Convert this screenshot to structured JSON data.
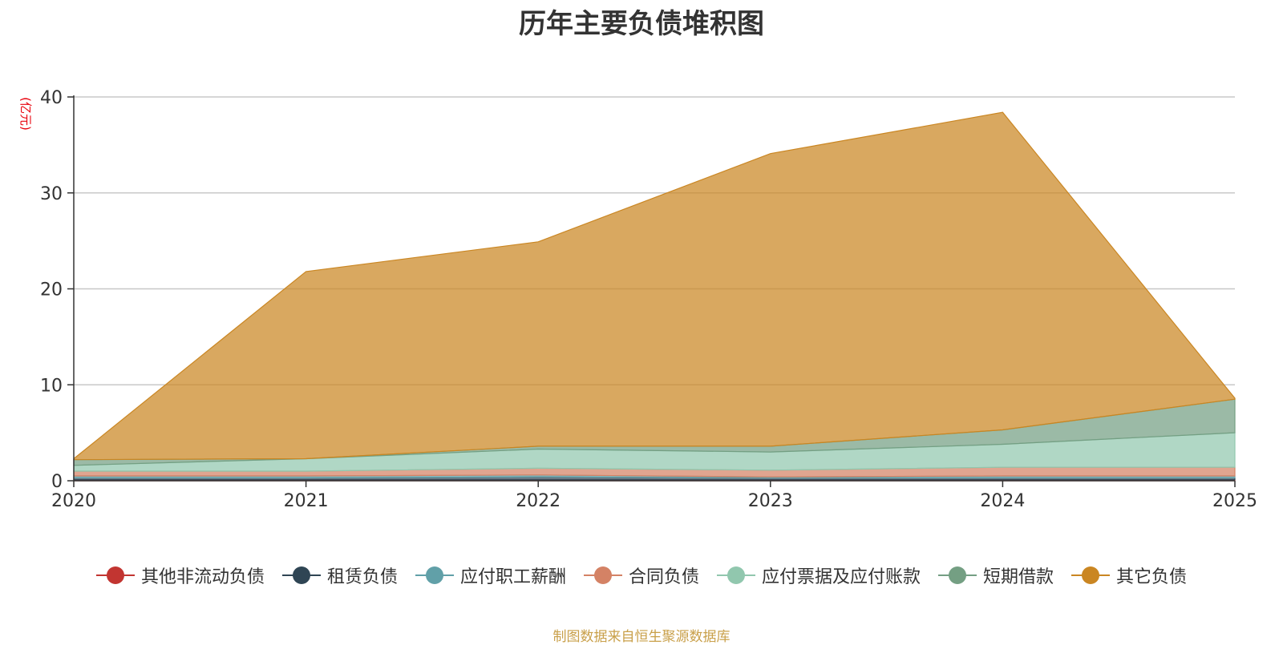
{
  "chart_data": {
    "type": "area",
    "stacked": true,
    "title": "历年主要负债堆积图",
    "ylabel": "(亿元)",
    "xlabel": "",
    "x": [
      "2020",
      "2021",
      "2022",
      "2023",
      "2024",
      "2025"
    ],
    "ylim": [
      0,
      40
    ],
    "yticks": [
      0,
      10,
      20,
      30,
      40
    ],
    "grid": true,
    "legend_position": "bottom",
    "series": [
      {
        "name": "其他非流动负债",
        "color": "#c23531",
        "values": [
          0.1,
          0.1,
          0.1,
          0.1,
          0.1,
          0.1
        ]
      },
      {
        "name": "租赁负债",
        "color": "#2f4554",
        "values": [
          0.2,
          0.2,
          0.3,
          0.2,
          0.2,
          0.2
        ]
      },
      {
        "name": "应付职工薪酬",
        "color": "#61a0a8",
        "values": [
          0.2,
          0.2,
          0.2,
          0.1,
          0.2,
          0.2
        ]
      },
      {
        "name": "合同负债",
        "color": "#d48265",
        "values": [
          0.5,
          0.5,
          0.7,
          0.7,
          0.9,
          0.9
        ]
      },
      {
        "name": "应付票据及应付账款",
        "color": "#91c7ae",
        "values": [
          0.6,
          1.3,
          2.0,
          1.9,
          2.4,
          3.6
        ]
      },
      {
        "name": "短期借款",
        "color": "#749f83",
        "values": [
          0.6,
          0.0,
          0.3,
          0.6,
          1.5,
          3.5
        ]
      },
      {
        "name": "其它负债",
        "color": "#ca8622",
        "values": [
          0.1,
          19.5,
          21.3,
          30.5,
          33.1,
          0.1
        ]
      }
    ]
  },
  "source_note": "制图数据来自恒生聚源数据库"
}
